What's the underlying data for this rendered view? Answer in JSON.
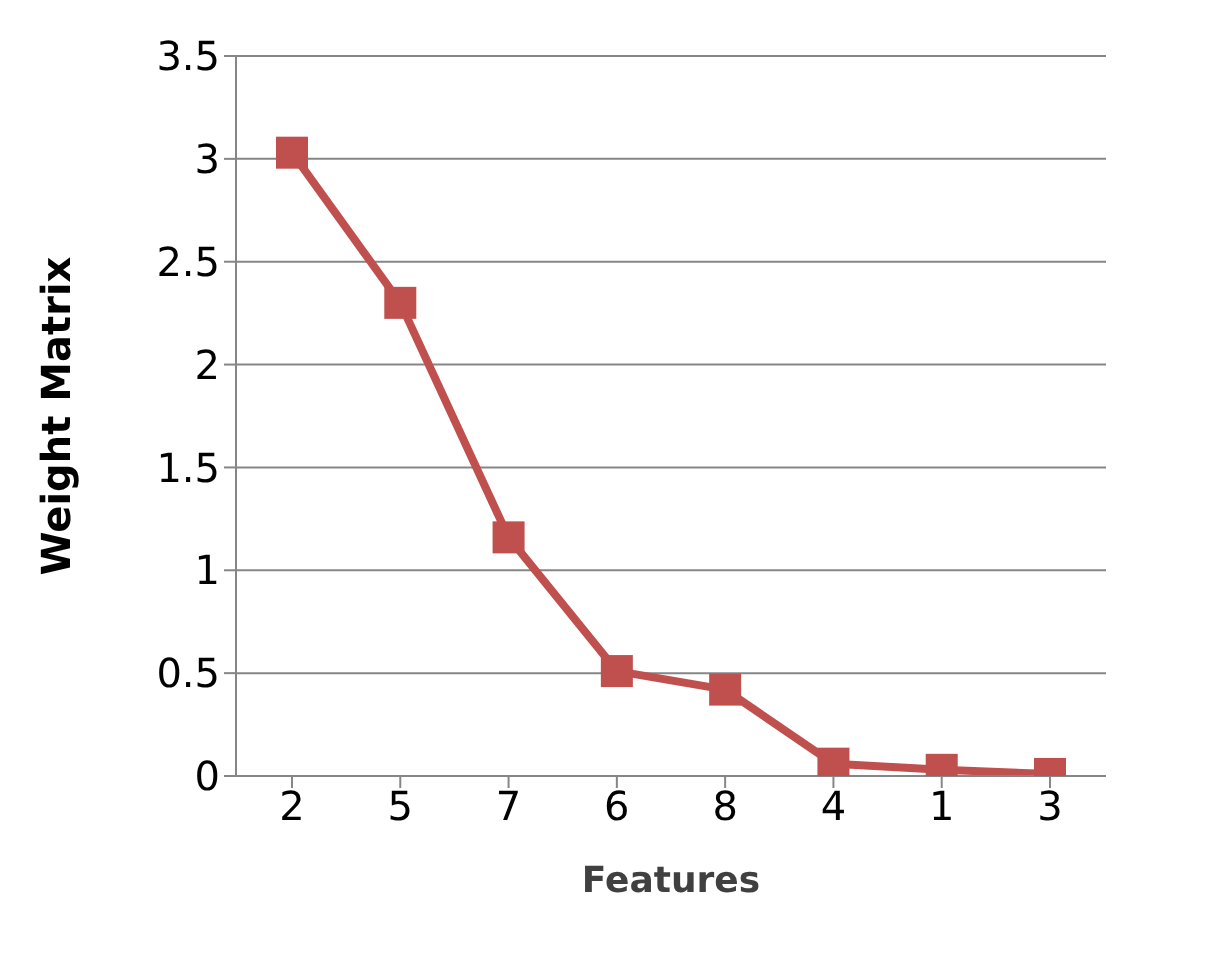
{
  "chart_data": {
    "type": "line",
    "xlabel": "Features",
    "ylabel": "Weight Matrix",
    "categories": [
      "2",
      "5",
      "7",
      "6",
      "8",
      "4",
      "1",
      "3"
    ],
    "series": [
      {
        "color": "#c0504d",
        "values": [
          3.03,
          2.3,
          1.16,
          0.51,
          0.42,
          0.06,
          0.03,
          0.01
        ]
      }
    ],
    "ylim": [
      0,
      3.5
    ],
    "yticks": [
      0,
      0.5,
      1,
      1.5,
      2,
      2.5,
      3,
      3.5
    ],
    "grid": "y",
    "marker": "square",
    "line_style": "solid"
  }
}
